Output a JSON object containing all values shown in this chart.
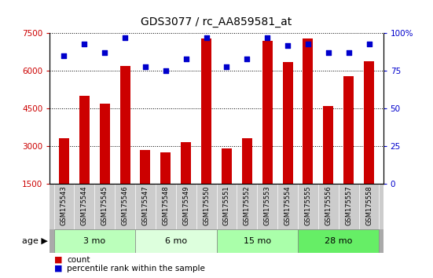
{
  "title": "GDS3077 / rc_AA859581_at",
  "samples": [
    "GSM175543",
    "GSM175544",
    "GSM175545",
    "GSM175546",
    "GSM175547",
    "GSM175548",
    "GSM175549",
    "GSM175550",
    "GSM175551",
    "GSM175552",
    "GSM175553",
    "GSM175554",
    "GSM175555",
    "GSM175556",
    "GSM175557",
    "GSM175558"
  ],
  "counts": [
    3300,
    5000,
    4700,
    6200,
    2850,
    2750,
    3150,
    7300,
    2900,
    3300,
    7200,
    6350,
    7300,
    4600,
    5800,
    6400
  ],
  "percentiles": [
    85,
    93,
    87,
    97,
    78,
    75,
    83,
    97,
    78,
    83,
    97,
    92,
    93,
    87,
    87,
    93
  ],
  "age_groups": [
    {
      "label": "3 mo",
      "start": 0,
      "end": 4,
      "color": "#bbffbb"
    },
    {
      "label": "6 mo",
      "start": 4,
      "end": 8,
      "color": "#ddffdd"
    },
    {
      "label": "15 mo",
      "start": 8,
      "end": 12,
      "color": "#aaffaa"
    },
    {
      "label": "28 mo",
      "start": 12,
      "end": 16,
      "color": "#66ee66"
    }
  ],
  "ylim_left": [
    1500,
    7500
  ],
  "ylim_right": [
    0,
    100
  ],
  "yticks_left": [
    1500,
    3000,
    4500,
    6000,
    7500
  ],
  "yticks_right": [
    0,
    25,
    50,
    75,
    100
  ],
  "bar_color": "#cc0000",
  "dot_color": "#0000cc",
  "sample_bg": "#cccccc",
  "plot_bg": "#ffffff",
  "legend_count_color": "#cc0000",
  "legend_pct_color": "#0000cc",
  "title_fontsize": 10
}
